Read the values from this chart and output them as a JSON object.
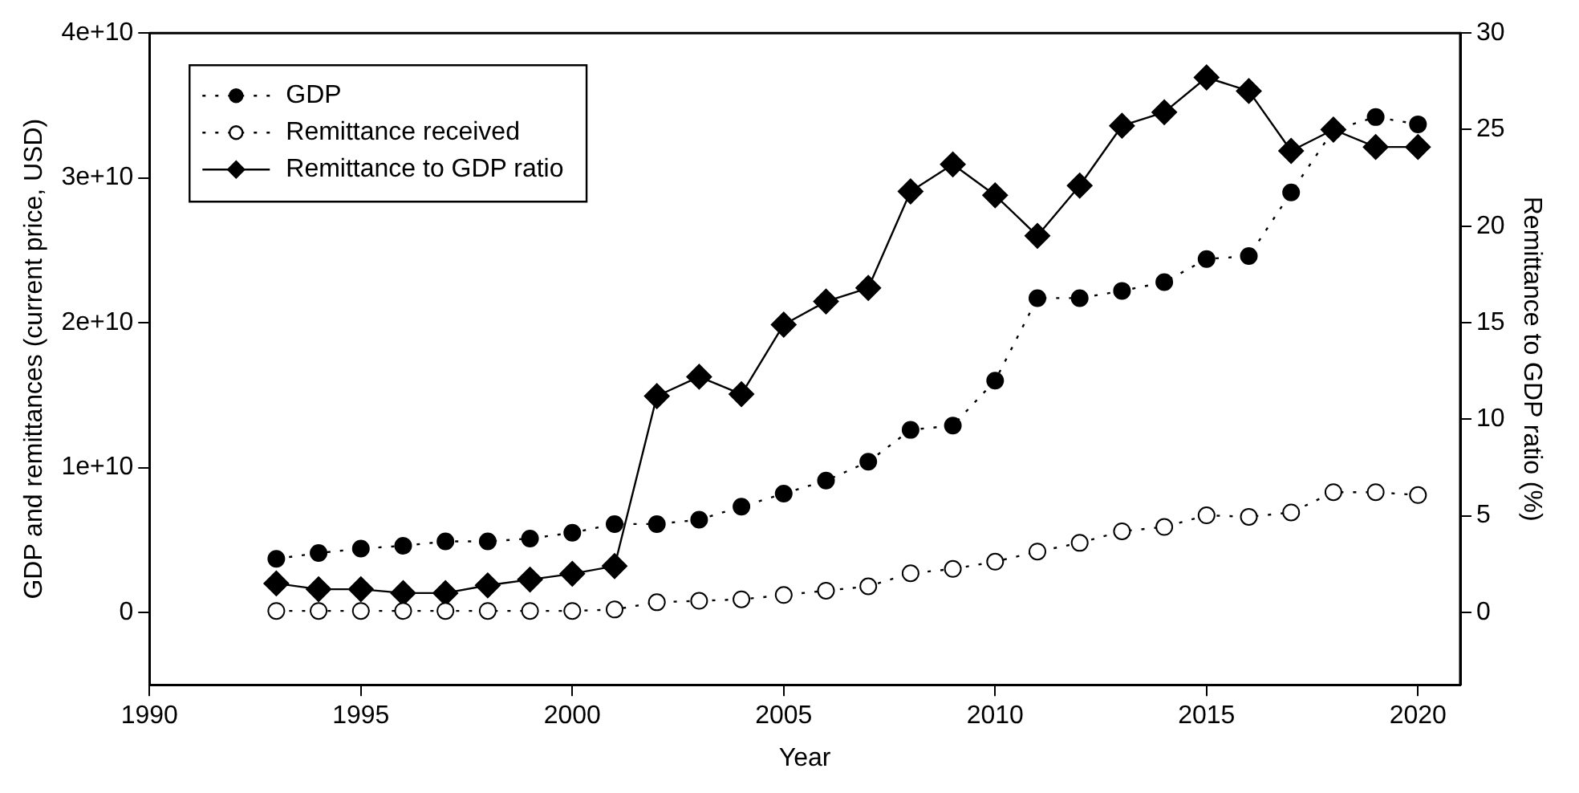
{
  "chart_data": {
    "type": "line",
    "xlabel": "Year",
    "ylabel": "GDP and remittances (current price, USD)",
    "y2label": "Remittance to GDP ratio (%)",
    "x": [
      1993,
      1994,
      1995,
      1996,
      1997,
      1998,
      1999,
      2000,
      2001,
      2002,
      2003,
      2004,
      2005,
      2006,
      2007,
      2008,
      2009,
      2010,
      2011,
      2012,
      2013,
      2014,
      2015,
      2016,
      2017,
      2018,
      2019,
      2020
    ],
    "series": [
      {
        "name": "GDP",
        "color": "#000000",
        "marker": "circle",
        "line_style": "dotted",
        "values": [
          3700000000.0,
          4100000000.0,
          4400000000.0,
          4600000000.0,
          4900000000.0,
          4900000000.0,
          5100000000.0,
          5500000000.0,
          6100000000.0,
          6100000000.0,
          6400000000.0,
          7300000000.0,
          8200000000.0,
          9100000000.0,
          10400000000.0,
          12600000000.0,
          12900000000.0,
          16000000000.0,
          21700000000.0,
          21700000000.0,
          22200000000.0,
          22800000000.0,
          24400000000.0,
          24600000000.0,
          29000000000.0,
          33300000000.0,
          34200000000.0,
          33700000000.0
        ]
      },
      {
        "name": "Remittance received",
        "color": "#000000",
        "marker": "circle",
        "line_style": "dotted",
        "values": [
          100000000.0,
          100000000.0,
          100000000.0,
          100000000.0,
          100000000.0,
          100000000.0,
          100000000.0,
          100000000.0,
          200000000.0,
          700000000.0,
          800000000.0,
          900000000.0,
          1200000000.0,
          1500000000.0,
          1800000000.0,
          2700000000.0,
          3000000000.0,
          3500000000.0,
          4200000000.0,
          4800000000.0,
          5600000000.0,
          5900000000.0,
          6700000000.0,
          6600000000.0,
          6900000000.0,
          8300000000.0,
          8300000000.0,
          8100000000.0
        ]
      },
      {
        "name": "Remittance to GDP ratio",
        "color": "#000000",
        "marker": "diamond",
        "line_style": "solid",
        "axis": "y2",
        "values": [
          1.5,
          1.2,
          1.2,
          1.0,
          1.0,
          1.4,
          1.7,
          2.0,
          2.4,
          11.2,
          12.2,
          11.3,
          14.9,
          16.1,
          16.8,
          21.8,
          23.2,
          21.6,
          19.5,
          22.1,
          25.2,
          25.9,
          27.7,
          27.0,
          23.9,
          25.0,
          24.1,
          24.1
        ]
      }
    ],
    "xlim": [
      1990,
      2021
    ],
    "xticks": [
      1990,
      1995,
      2000,
      2005,
      2010,
      2015,
      2020
    ],
    "ylim": [
      -5000000000.0,
      40000000000.0
    ],
    "yticks": [
      {
        "value": 0,
        "label": "0"
      },
      {
        "value": 10000000000.0,
        "label": "1e+10"
      },
      {
        "value": 20000000000.0,
        "label": "2e+10"
      },
      {
        "value": 30000000000.0,
        "label": "3e+10"
      },
      {
        "value": 40000000000.0,
        "label": "4e+10"
      }
    ],
    "y2lim": [
      -3.75,
      30
    ],
    "y2ticks": [
      0,
      5,
      10,
      15,
      20,
      25,
      30
    ],
    "grid": false,
    "legend": "top left"
  }
}
